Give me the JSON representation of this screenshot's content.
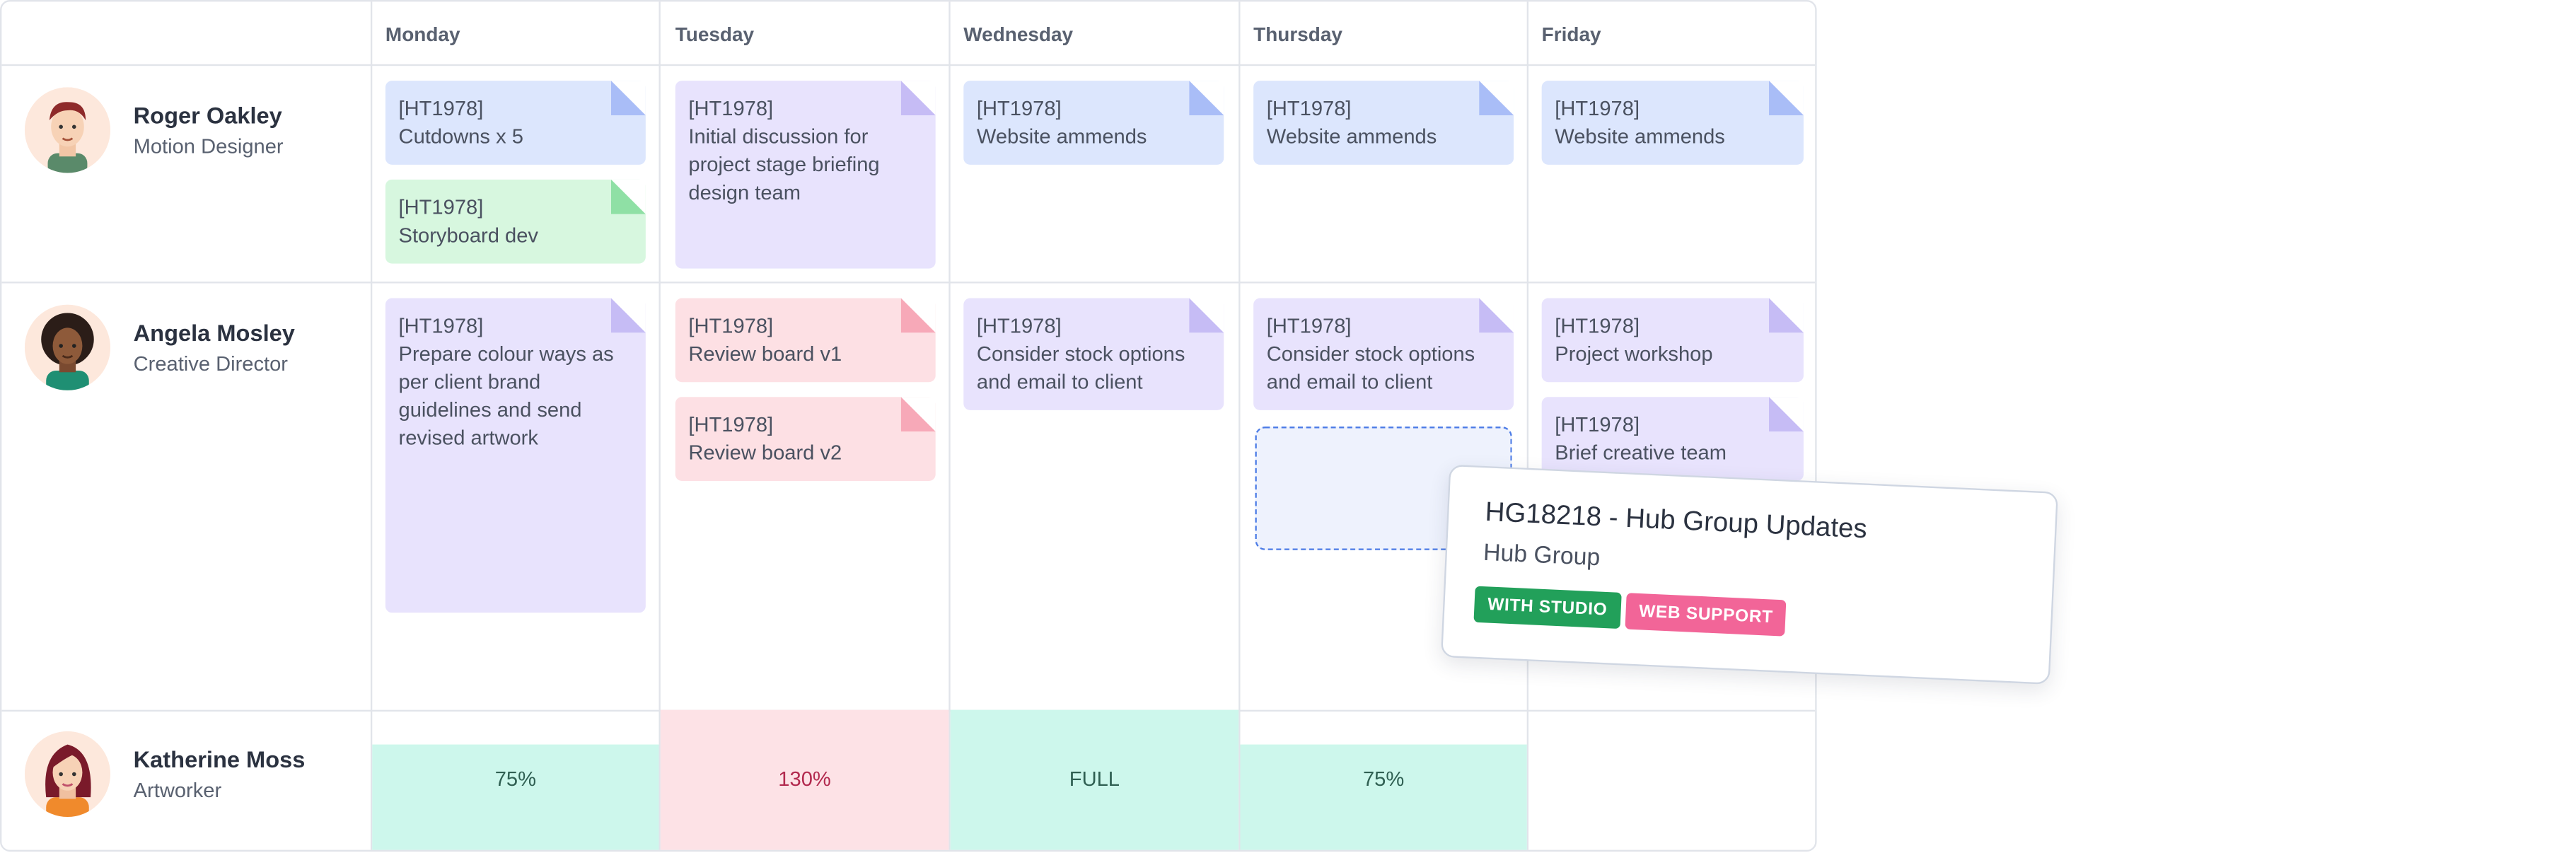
{
  "days": [
    "Monday",
    "Tuesday",
    "Wednesday",
    "Thursday",
    "Friday"
  ],
  "people": [
    {
      "name": "Roger Oakley",
      "role": "Motion Designer",
      "tasks": {
        "monday": [
          {
            "code": "[HT1978]",
            "text": "Cutdowns x 5",
            "color": "#dce6fd"
          },
          {
            "code": "[HT1978]",
            "text": "Storyboard dev",
            "color": "#d7f7df"
          }
        ],
        "tuesday": [
          {
            "code": "[HT1978]",
            "text": "Initial discussion for project stage briefing design team",
            "color": "#e8e3fd"
          }
        ],
        "wednesday": [
          {
            "code": "[HT1978]",
            "text": "Website ammends",
            "color": "#dce6fd"
          }
        ],
        "thursday": [
          {
            "code": "[HT1978]",
            "text": "Website ammends",
            "color": "#dce6fd"
          }
        ],
        "friday": [
          {
            "code": "[HT1978]",
            "text": "Website ammends",
            "color": "#dce6fd"
          }
        ]
      }
    },
    {
      "name": "Angela Mosley",
      "role": "Creative Director",
      "tasks": {
        "monday": [
          {
            "code": "[HT1978]",
            "text": "Prepare colour ways as per client brand guidelines and send revised artwork",
            "color": "#e8e3fd"
          }
        ],
        "tuesday": [
          {
            "code": "[HT1978]",
            "text": "Review board v1",
            "color": "#fde0e4"
          },
          {
            "code": "[HT1978]",
            "text": "Review board v2",
            "color": "#fde0e4"
          }
        ],
        "wednesday": [
          {
            "code": "[HT1978]",
            "text": "Consider stock options and email to client",
            "color": "#e8e3fd"
          }
        ],
        "thursday": [
          {
            "code": "[HT1978]",
            "text": "Consider stock options and email to client",
            "color": "#e8e3fd"
          }
        ],
        "friday": [
          {
            "code": "[HT1978]",
            "text": "Project workshop",
            "color": "#e8e3fd"
          },
          {
            "code": "[HT1978]",
            "text": "Brief creative team",
            "color": "#e8e3fd"
          }
        ]
      }
    },
    {
      "name": "Katherine Moss",
      "role": "Artworker",
      "utilization": [
        {
          "day": "monday",
          "label": "75%",
          "status_color": "#cdf7ec"
        },
        {
          "day": "tuesday",
          "label": "130%",
          "status_color": "#fde2e6"
        },
        {
          "day": "wednesday",
          "label": "FULL",
          "status_color": "#cdf7ec"
        },
        {
          "day": "thursday",
          "label": "75%",
          "status_color": "#cdf7ec"
        },
        {
          "day": "friday",
          "label": "",
          "status_color": "#ffffff"
        }
      ]
    }
  ],
  "dragged_card": {
    "title": "HG18218 - Hub Group Updates",
    "client": "Hub Group",
    "badges": [
      {
        "label": "WITH STUDIO",
        "color": "#22a05a"
      },
      {
        "label": "WEB SUPPORT",
        "color": "#f26598"
      }
    ]
  },
  "icons": [
    "avatar-roger",
    "avatar-angela",
    "avatar-katherine",
    "folded-corner-icon"
  ]
}
